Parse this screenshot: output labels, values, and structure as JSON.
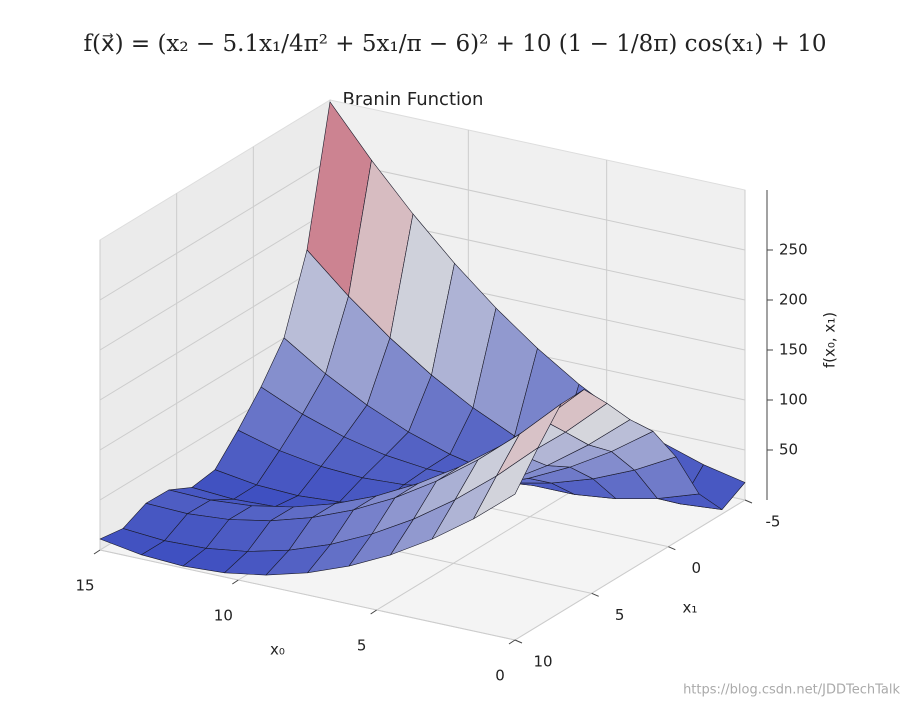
{
  "chart_data": {
    "type": "surface",
    "formula": "f(x⃗) = (x₂ − 5.1x₁/4π² + 5x₁/π − 6)² + 10 (1 − 1/8π) cos(x₁) + 10",
    "title": "Branin Function",
    "x_label": "x₀",
    "y_label": "x₁",
    "z_label": "f(x₀, x₁)",
    "watermark": "https://blog.csdn.net/JDDTechTalk",
    "x": [
      0,
      1.5,
      3,
      4.5,
      6,
      7.5,
      9,
      10.5,
      12,
      13.5,
      15
    ],
    "y": [
      -5,
      -3.5,
      -2,
      -0.5,
      1,
      2.5,
      4,
      5.5,
      7,
      8.5,
      10
    ],
    "z": [
      [
        17.5,
        26.3,
        39.6,
        57.4,
        79.7,
        106.6,
        137.9,
        173.7,
        214.0,
        258.8,
        308.1
      ],
      [
        4.4,
        1.1,
        2.3,
        8.0,
        18.3,
        33.0,
        52.2,
        75.9,
        104.1,
        136.8,
        174.0
      ],
      [
        34.1,
        20.4,
        11.3,
        6.6,
        6.5,
        10.8,
        19.7,
        33.0,
        50.9,
        73.2,
        100.1
      ],
      [
        85.2,
        62.9,
        45.2,
        31.9,
        23.1,
        18.9,
        19.1,
        23.8,
        33.1,
        46.8,
        65.0
      ],
      [
        124.7,
        95.5,
        70.9,
        50.7,
        35.1,
        24.0,
        17.3,
        15.2,
        17.6,
        24.4,
        35.8
      ],
      [
        150.4,
        116.2,
        86.4,
        61.1,
        40.4,
        24.1,
        12.4,
        5.1,
        2.3,
        4.1,
        10.3
      ],
      [
        180.6,
        142.9,
        109.8,
        81.1,
        57.0,
        37.4,
        22.2,
        11.6,
        5.4,
        3.8,
        6.6
      ],
      [
        208.5,
        169.2,
        134.4,
        104.1,
        78.4,
        57.1,
        40.3,
        28.0,
        20.2,
        16.9,
        18.1
      ],
      [
        208.0,
        168.8,
        134.1,
        103.9,
        78.2,
        57.1,
        40.4,
        28.2,
        20.5,
        17.3,
        18.7
      ],
      [
        178.3,
        141.0,
        108.2,
        79.8,
        56.0,
        36.6,
        21.8,
        11.5,
        5.7,
        4.3,
        7.5
      ],
      [
        145.9,
        112.1,
        82.9,
        58.1,
        37.9,
        22.2,
        10.9,
        4.2,
        1.9,
        4.2,
        11.0
      ]
    ],
    "xlim": [
      0,
      15
    ],
    "xticks": [
      0,
      5,
      10,
      15
    ],
    "ylim": [
      -5,
      10
    ],
    "yticks": [
      -5,
      0,
      5,
      10
    ],
    "zlim": [
      0,
      310
    ],
    "zticks": [
      50,
      100,
      150,
      200,
      250
    ],
    "colormap": [
      "#3b4cc0",
      "#dddddd",
      "#b40426"
    ],
    "grid": true
  }
}
